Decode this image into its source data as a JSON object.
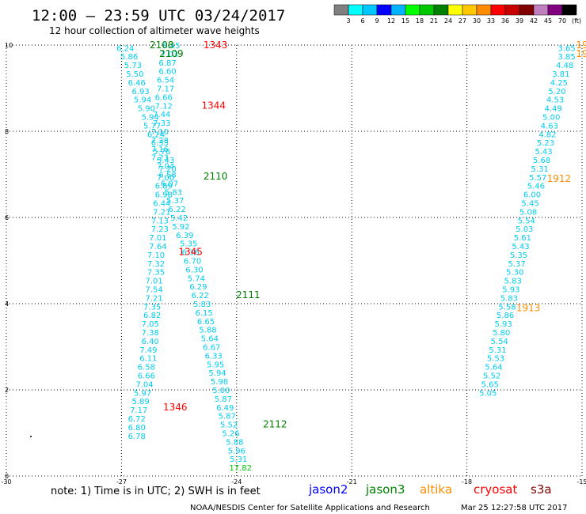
{
  "title": "12:00 – 23:59 UTC 03/24/2017",
  "subtitle": "12 hour collection of altimeter wave heights",
  "note": "note: 1) Time is in UTC; 2) SWH is in feet",
  "credit": "NOAA/NESDIS Center for Satellite Applications and Research",
  "timestamp": "Mar 25 12:27:58 UTC 2017",
  "colorbar": {
    "ticks": [
      "3",
      "6",
      "9",
      "12",
      "15",
      "18",
      "21",
      "24",
      "27",
      "30",
      "33",
      "36",
      "39",
      "42",
      "45",
      "70",
      "(ft)"
    ],
    "colors": [
      "#808080",
      "#00ffff",
      "#00c8ff",
      "#0000ff",
      "#00b4ff",
      "#00ff00",
      "#00c800",
      "#008000",
      "#ffff00",
      "#ffc800",
      "#ff8c00",
      "#ff0000",
      "#c80000",
      "#800000",
      "#c080c0",
      "#800080",
      "#000000"
    ]
  },
  "legend": [
    {
      "name": "jason2",
      "color": "#0000ff"
    },
    {
      "name": "jason3",
      "color": "#008000"
    },
    {
      "name": "altika",
      "color": "#ff8c00"
    },
    {
      "name": "cryosat",
      "color": "#ff0000"
    },
    {
      "name": "s3a",
      "color": "#800000"
    }
  ],
  "chart_data": {
    "type": "scatter",
    "x_range": [
      -30,
      -15
    ],
    "y_range": [
      0,
      10
    ],
    "x_ticks": [
      "-30",
      "-27",
      "-24",
      "-21",
      "-18",
      "-15"
    ],
    "y_ticks": [
      "0",
      "2",
      "4",
      "6",
      "8",
      "10"
    ],
    "grid": true,
    "color_scale_unit": "ft",
    "series": [
      {
        "name": "jason3",
        "color": "#00ccee",
        "points": [
          {
            "x": -26.9,
            "y": 9.94,
            "v": "6.24"
          },
          {
            "x": -26.8,
            "y": 9.74,
            "v": "5.86"
          },
          {
            "x": -26.7,
            "y": 9.54,
            "v": "5.73"
          },
          {
            "x": -26.65,
            "y": 9.34,
            "v": "5.50"
          },
          {
            "x": -26.6,
            "y": 9.14,
            "v": "6.46"
          },
          {
            "x": -26.5,
            "y": 8.94,
            "v": "6.93"
          },
          {
            "x": -26.45,
            "y": 8.74,
            "v": "5.94"
          },
          {
            "x": -26.35,
            "y": 8.54,
            "v": "5.90"
          },
          {
            "x": -26.25,
            "y": 8.34,
            "v": "5.94"
          },
          {
            "x": -26.2,
            "y": 8.14,
            "v": "5.77"
          },
          {
            "x": -26.1,
            "y": 7.94,
            "v": "6.24"
          },
          {
            "x": -26.0,
            "y": 7.74,
            "v": "6.33"
          },
          {
            "x": -25.95,
            "y": 7.54,
            "v": "5.76"
          },
          {
            "x": -25.85,
            "y": 7.34,
            "v": "5.43"
          },
          {
            "x": -25.8,
            "y": 7.14,
            "v": "7.20"
          },
          {
            "x": -25.85,
            "y": 6.94,
            "v": "7.00"
          },
          {
            "x": -25.9,
            "y": 6.74,
            "v": "6.89"
          },
          {
            "x": -25.9,
            "y": 6.54,
            "v": "6.98"
          },
          {
            "x": -25.95,
            "y": 6.34,
            "v": "6.44"
          },
          {
            "x": -25.95,
            "y": 6.14,
            "v": "7.21"
          },
          {
            "x": -26.0,
            "y": 5.94,
            "v": "7.13"
          },
          {
            "x": -26.0,
            "y": 5.74,
            "v": "7.23"
          },
          {
            "x": -26.05,
            "y": 5.54,
            "v": "7.01"
          },
          {
            "x": -26.05,
            "y": 5.34,
            "v": "7.64"
          },
          {
            "x": -26.1,
            "y": 5.14,
            "v": "7.10"
          },
          {
            "x": -26.1,
            "y": 4.94,
            "v": "7.32"
          },
          {
            "x": -26.1,
            "y": 4.74,
            "v": "7.35"
          },
          {
            "x": -26.15,
            "y": 4.54,
            "v": "7.01"
          },
          {
            "x": -26.15,
            "y": 4.34,
            "v": "7.54"
          },
          {
            "x": -26.15,
            "y": 4.14,
            "v": "7.21"
          },
          {
            "x": -26.2,
            "y": 3.94,
            "v": "7.35"
          },
          {
            "x": -26.2,
            "y": 3.74,
            "v": "6.82"
          },
          {
            "x": -26.25,
            "y": 3.54,
            "v": "7.05"
          },
          {
            "x": -26.25,
            "y": 3.34,
            "v": "7.38"
          },
          {
            "x": -26.25,
            "y": 3.14,
            "v": "6.40"
          },
          {
            "x": -26.3,
            "y": 2.94,
            "v": "7.49"
          },
          {
            "x": -26.3,
            "y": 2.74,
            "v": "6.11"
          },
          {
            "x": -26.35,
            "y": 2.54,
            "v": "6.58"
          },
          {
            "x": -26.35,
            "y": 2.34,
            "v": "6.66"
          },
          {
            "x": -26.4,
            "y": 2.14,
            "v": "7.04"
          },
          {
            "x": -26.45,
            "y": 1.94,
            "v": "5.97"
          },
          {
            "x": -26.5,
            "y": 1.74,
            "v": "5.89"
          },
          {
            "x": -26.55,
            "y": 1.54,
            "v": "7.17"
          },
          {
            "x": -26.6,
            "y": 1.34,
            "v": "6.72"
          },
          {
            "x": -26.6,
            "y": 1.14,
            "v": "6.80"
          },
          {
            "x": -26.6,
            "y": 0.94,
            "v": "6.78"
          }
        ]
      },
      {
        "name": "cryosat",
        "color": "#00ccee",
        "points": [
          {
            "x": -25.7,
            "y": 10.0,
            "v": "6.45"
          },
          {
            "x": -25.75,
            "y": 9.8,
            "v": "7.03"
          },
          {
            "x": -25.8,
            "y": 9.6,
            "v": "6.87"
          },
          {
            "x": -25.8,
            "y": 9.4,
            "v": "6.60"
          },
          {
            "x": -25.85,
            "y": 9.2,
            "v": "6.54"
          },
          {
            "x": -25.85,
            "y": 9.0,
            "v": "7.17"
          },
          {
            "x": -25.9,
            "y": 8.8,
            "v": "6.66"
          },
          {
            "x": -25.9,
            "y": 8.6,
            "v": "7.12"
          },
          {
            "x": -25.95,
            "y": 8.4,
            "v": "7.44"
          },
          {
            "x": -25.95,
            "y": 8.2,
            "v": "7.33"
          },
          {
            "x": -26.0,
            "y": 8.0,
            "v": "7.10"
          },
          {
            "x": -26.0,
            "y": 7.8,
            "v": "7.28"
          },
          {
            "x": -26.0,
            "y": 7.6,
            "v": "7.16"
          },
          {
            "x": -26.0,
            "y": 7.4,
            "v": "7.23"
          },
          {
            "x": -25.85,
            "y": 7.2,
            "v": "7.04"
          },
          {
            "x": -25.8,
            "y": 7.0,
            "v": "6.58"
          },
          {
            "x": -25.75,
            "y": 6.8,
            "v": "6.07"
          },
          {
            "x": -25.65,
            "y": 6.6,
            "v": "5.83"
          },
          {
            "x": -25.6,
            "y": 6.4,
            "v": "5.37"
          },
          {
            "x": -25.55,
            "y": 6.2,
            "v": "6.22"
          },
          {
            "x": -25.5,
            "y": 6.0,
            "v": "5.42"
          },
          {
            "x": -25.45,
            "y": 5.8,
            "v": "5.92"
          },
          {
            "x": -25.35,
            "y": 5.6,
            "v": "6.39"
          },
          {
            "x": -25.25,
            "y": 5.4,
            "v": "5.35"
          },
          {
            "x": -25.2,
            "y": 5.2,
            "v": "6.36"
          },
          {
            "x": -25.15,
            "y": 5.0,
            "v": "6.70"
          },
          {
            "x": -25.1,
            "y": 4.8,
            "v": "6.30"
          },
          {
            "x": -25.05,
            "y": 4.6,
            "v": "5.74"
          },
          {
            "x": -25.0,
            "y": 4.4,
            "v": "6.29"
          },
          {
            "x": -24.95,
            "y": 4.2,
            "v": "6.22"
          },
          {
            "x": -24.9,
            "y": 4.0,
            "v": "5.83"
          },
          {
            "x": -24.85,
            "y": 3.8,
            "v": "6.15"
          },
          {
            "x": -24.8,
            "y": 3.6,
            "v": "6.65"
          },
          {
            "x": -24.75,
            "y": 3.4,
            "v": "5.88"
          },
          {
            "x": -24.7,
            "y": 3.2,
            "v": "5.64"
          },
          {
            "x": -24.65,
            "y": 3.0,
            "v": "6.67"
          },
          {
            "x": -24.6,
            "y": 2.8,
            "v": "6.33"
          },
          {
            "x": -24.55,
            "y": 2.6,
            "v": "5.95"
          },
          {
            "x": -24.5,
            "y": 2.4,
            "v": "5.94"
          },
          {
            "x": -24.45,
            "y": 2.2,
            "v": "5.98"
          },
          {
            "x": -24.4,
            "y": 2.0,
            "v": "5.00"
          },
          {
            "x": -24.35,
            "y": 1.8,
            "v": "5.87"
          },
          {
            "x": -24.3,
            "y": 1.6,
            "v": "6.49"
          },
          {
            "x": -24.25,
            "y": 1.4,
            "v": "5.87"
          },
          {
            "x": -24.2,
            "y": 1.2,
            "v": "5.52"
          },
          {
            "x": -24.15,
            "y": 1.0,
            "v": "5.26"
          },
          {
            "x": -24.05,
            "y": 0.8,
            "v": "5.88"
          },
          {
            "x": -24.0,
            "y": 0.6,
            "v": "5.96"
          },
          {
            "x": -23.95,
            "y": 0.4,
            "v": "5.31"
          },
          {
            "x": -23.9,
            "y": 0.2,
            "v": "17.82",
            "color": "#00cc00"
          }
        ]
      },
      {
        "name": "altika",
        "color": "#00ccee",
        "points": [
          {
            "x": -15.4,
            "y": 9.94,
            "v": "3.65"
          },
          {
            "x": -15.4,
            "y": 9.74,
            "v": "3.85"
          },
          {
            "x": -15.45,
            "y": 9.54,
            "v": "4.48"
          },
          {
            "x": -15.55,
            "y": 9.34,
            "v": "3.81"
          },
          {
            "x": -15.6,
            "y": 9.14,
            "v": "4.25"
          },
          {
            "x": -15.65,
            "y": 8.94,
            "v": "5.20"
          },
          {
            "x": -15.7,
            "y": 8.74,
            "v": "4.53"
          },
          {
            "x": -15.75,
            "y": 8.54,
            "v": "4.49"
          },
          {
            "x": -15.8,
            "y": 8.34,
            "v": "5.00"
          },
          {
            "x": -15.85,
            "y": 8.14,
            "v": "4.63"
          },
          {
            "x": -15.9,
            "y": 7.94,
            "v": "4.82"
          },
          {
            "x": -15.95,
            "y": 7.74,
            "v": "5.23"
          },
          {
            "x": -16.0,
            "y": 7.54,
            "v": "5.43"
          },
          {
            "x": -16.05,
            "y": 7.34,
            "v": "5.68"
          },
          {
            "x": -16.1,
            "y": 7.14,
            "v": "5.31"
          },
          {
            "x": -16.15,
            "y": 6.94,
            "v": "5.57"
          },
          {
            "x": -16.2,
            "y": 6.74,
            "v": "5.46"
          },
          {
            "x": -16.3,
            "y": 6.54,
            "v": "6.00"
          },
          {
            "x": -16.35,
            "y": 6.34,
            "v": "5.45"
          },
          {
            "x": -16.4,
            "y": 6.14,
            "v": "5.08"
          },
          {
            "x": -16.45,
            "y": 5.94,
            "v": "5.54"
          },
          {
            "x": -16.5,
            "y": 5.74,
            "v": "5.03"
          },
          {
            "x": -16.55,
            "y": 5.54,
            "v": "5.61"
          },
          {
            "x": -16.6,
            "y": 5.34,
            "v": "5.43"
          },
          {
            "x": -16.65,
            "y": 5.14,
            "v": "5.35"
          },
          {
            "x": -16.7,
            "y": 4.94,
            "v": "5.37"
          },
          {
            "x": -16.75,
            "y": 4.74,
            "v": "5.30"
          },
          {
            "x": -16.8,
            "y": 4.54,
            "v": "5.83"
          },
          {
            "x": -16.85,
            "y": 4.34,
            "v": "5.93"
          },
          {
            "x": -16.9,
            "y": 4.14,
            "v": "5.83"
          },
          {
            "x": -16.95,
            "y": 3.94,
            "v": "5.58"
          },
          {
            "x": -17.0,
            "y": 3.74,
            "v": "5.86"
          },
          {
            "x": -17.05,
            "y": 3.54,
            "v": "5.93"
          },
          {
            "x": -17.1,
            "y": 3.34,
            "v": "5.80"
          },
          {
            "x": -17.15,
            "y": 3.14,
            "v": "5.54"
          },
          {
            "x": -17.2,
            "y": 2.94,
            "v": "5.31"
          },
          {
            "x": -17.25,
            "y": 2.74,
            "v": "5.53"
          },
          {
            "x": -17.3,
            "y": 2.54,
            "v": "5.64"
          },
          {
            "x": -17.35,
            "y": 2.34,
            "v": "5.52"
          },
          {
            "x": -17.4,
            "y": 2.14,
            "v": "5.65"
          },
          {
            "x": -17.45,
            "y": 1.94,
            "v": "5.05"
          }
        ]
      }
    ],
    "pass_labels": [
      {
        "text": "2108",
        "x": -25.95,
        "y": 10.0,
        "color": "#008000"
      },
      {
        "text": "2109",
        "x": -25.7,
        "y": 9.8,
        "color": "#008000"
      },
      {
        "text": "1343",
        "x": -24.55,
        "y": 10.0,
        "color": "#ff0000"
      },
      {
        "text": "1344",
        "x": -24.6,
        "y": 8.6,
        "color": "#ff0000"
      },
      {
        "text": "2110",
        "x": -24.55,
        "y": 6.95,
        "color": "#008000"
      },
      {
        "text": "1345",
        "x": -25.2,
        "y": 5.2,
        "color": "#ff0000"
      },
      {
        "text": "2111",
        "x": -23.7,
        "y": 4.2,
        "color": "#008000"
      },
      {
        "text": "1346",
        "x": -25.6,
        "y": 1.6,
        "color": "#ff0000"
      },
      {
        "text": "2112",
        "x": -23.0,
        "y": 1.2,
        "color": "#008000"
      },
      {
        "text": "19",
        "x": -15.0,
        "y": 10.0,
        "color": "#ff8c00"
      },
      {
        "text": "19",
        "x": -15.0,
        "y": 9.8,
        "color": "#ff8c00"
      },
      {
        "text": "1912",
        "x": -15.6,
        "y": 6.9,
        "color": "#ff8c00"
      },
      {
        "text": "1913",
        "x": -16.4,
        "y": 3.9,
        "color": "#ff8c00"
      }
    ]
  }
}
